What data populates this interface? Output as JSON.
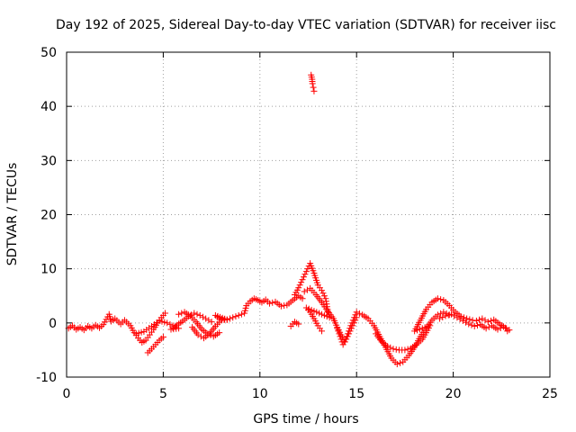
{
  "chart_data": {
    "type": "scatter",
    "title": "Day 192 of 2025, Sidereal Day-to-day VTEC variation (SDTVAR) for receiver iisc",
    "xlabel": "GPS time / hours",
    "ylabel": "SDTVAR / TECUs",
    "xlim": [
      0,
      25
    ],
    "ylim": [
      -10,
      50
    ],
    "xticks": [
      "0",
      "5",
      "10",
      "15",
      "20",
      "25"
    ],
    "yticks": [
      "-10",
      "0",
      "10",
      "20",
      "30",
      "40",
      "50"
    ],
    "grid": true,
    "marker": "+",
    "series": [
      {
        "name": "SDTVAR",
        "color": "#ff0000",
        "points": [
          [
            0.1,
            -1.0
          ],
          [
            0.3,
            -0.5
          ],
          [
            0.5,
            -1.2
          ],
          [
            0.7,
            -0.8
          ],
          [
            0.9,
            -1.3
          ],
          [
            1.1,
            -0.6
          ],
          [
            1.3,
            -1.0
          ],
          [
            1.5,
            -0.4
          ],
          [
            1.7,
            -0.9
          ],
          [
            1.9,
            -0.3
          ],
          [
            2.2,
            1.6
          ],
          [
            2.3,
            0.3
          ],
          [
            2.5,
            0.8
          ],
          [
            2.8,
            -0.2
          ],
          [
            3.0,
            0.5
          ],
          [
            3.3,
            -0.5
          ],
          [
            3.5,
            -1.8
          ],
          [
            3.7,
            -2.8
          ],
          [
            3.9,
            -3.6
          ],
          [
            4.1,
            -3.2
          ],
          [
            4.3,
            -2.2
          ],
          [
            4.5,
            -1.2
          ],
          [
            4.7,
            0.0
          ],
          [
            4.9,
            1.0
          ],
          [
            5.1,
            1.8
          ],
          [
            4.2,
            -5.5
          ],
          [
            4.4,
            -4.8
          ],
          [
            4.6,
            -4.0
          ],
          [
            4.8,
            -3.2
          ],
          [
            5.0,
            -2.6
          ],
          [
            3.6,
            -2.0
          ],
          [
            4.0,
            -1.6
          ],
          [
            4.4,
            -0.6
          ],
          [
            4.8,
            0.4
          ],
          [
            5.2,
            0.0
          ],
          [
            5.5,
            -0.5
          ],
          [
            5.8,
            -1.0
          ],
          [
            5.4,
            -1.2
          ],
          [
            5.7,
            -0.4
          ],
          [
            6.0,
            0.3
          ],
          [
            6.3,
            1.2
          ],
          [
            6.6,
            1.8
          ],
          [
            6.9,
            1.4
          ],
          [
            7.2,
            0.8
          ],
          [
            7.5,
            0.2
          ],
          [
            5.8,
            1.6
          ],
          [
            6.1,
            2.0
          ],
          [
            6.4,
            1.3
          ],
          [
            6.7,
            0.2
          ],
          [
            7.0,
            -1.2
          ],
          [
            7.3,
            -2.0
          ],
          [
            7.6,
            -2.5
          ],
          [
            7.9,
            -1.8
          ],
          [
            6.5,
            -0.8
          ],
          [
            6.8,
            -2.2
          ],
          [
            7.1,
            -2.8
          ],
          [
            7.4,
            -2.0
          ],
          [
            7.7,
            -0.6
          ],
          [
            8.0,
            0.5
          ],
          [
            8.3,
            0.6
          ],
          [
            7.7,
            1.4
          ],
          [
            7.9,
            0.8
          ],
          [
            8.3,
            0.6
          ],
          [
            8.6,
            1.0
          ],
          [
            8.9,
            1.4
          ],
          [
            9.2,
            1.8
          ],
          [
            9.3,
            3.2
          ],
          [
            9.5,
            4.0
          ],
          [
            9.7,
            4.5
          ],
          [
            9.9,
            4.2
          ],
          [
            10.1,
            3.8
          ],
          [
            10.3,
            4.3
          ],
          [
            10.5,
            3.6
          ],
          [
            10.8,
            3.9
          ],
          [
            11.1,
            3.1
          ],
          [
            11.4,
            3.3
          ],
          [
            11.7,
            4.2
          ],
          [
            12.0,
            5.0
          ],
          [
            12.2,
            4.5
          ],
          [
            11.6,
            -0.6
          ],
          [
            11.8,
            0.2
          ],
          [
            12.0,
            -0.2
          ],
          [
            11.8,
            5.2
          ],
          [
            12.0,
            6.5
          ],
          [
            12.2,
            8.0
          ],
          [
            12.4,
            9.5
          ],
          [
            12.6,
            11.0
          ],
          [
            12.8,
            9.2
          ],
          [
            13.0,
            7.0
          ],
          [
            13.2,
            6.0
          ],
          [
            13.4,
            4.5
          ],
          [
            13.5,
            2.5
          ],
          [
            13.6,
            1.0
          ],
          [
            12.4,
            2.8
          ],
          [
            12.6,
            2.0
          ],
          [
            12.8,
            0.8
          ],
          [
            13.0,
            -0.5
          ],
          [
            13.2,
            -1.5
          ],
          [
            12.3,
            5.8
          ],
          [
            12.6,
            6.4
          ],
          [
            12.9,
            5.2
          ],
          [
            13.2,
            3.8
          ],
          [
            13.5,
            2.2
          ],
          [
            13.8,
            0.8
          ],
          [
            14.0,
            -0.8
          ],
          [
            14.2,
            -2.2
          ],
          [
            14.4,
            -3.5
          ],
          [
            14.6,
            -2.0
          ],
          [
            14.8,
            -0.5
          ],
          [
            15.0,
            1.0
          ],
          [
            12.65,
            45.8
          ],
          [
            12.7,
            45.0
          ],
          [
            12.72,
            44.2
          ],
          [
            12.76,
            43.5
          ],
          [
            12.8,
            42.8
          ],
          [
            14.0,
            -1.0
          ],
          [
            14.2,
            -3.0
          ],
          [
            14.3,
            -4.0
          ],
          [
            14.5,
            -2.5
          ],
          [
            14.7,
            -0.5
          ],
          [
            15.0,
            2.0
          ],
          [
            15.3,
            1.5
          ],
          [
            15.6,
            0.8
          ],
          [
            15.9,
            -0.5
          ],
          [
            16.2,
            -2.5
          ],
          [
            16.5,
            -4.5
          ],
          [
            16.8,
            -6.5
          ],
          [
            17.1,
            -7.6
          ],
          [
            17.4,
            -7.2
          ],
          [
            17.7,
            -6.0
          ],
          [
            18.0,
            -4.5
          ],
          [
            18.3,
            -2.5
          ],
          [
            18.6,
            -1.0
          ],
          [
            18.9,
            0.5
          ],
          [
            19.2,
            1.5
          ],
          [
            19.5,
            2.0
          ],
          [
            19.8,
            1.5
          ],
          [
            16.0,
            -2.0
          ],
          [
            16.3,
            -3.5
          ],
          [
            16.6,
            -4.3
          ],
          [
            16.9,
            -4.8
          ],
          [
            17.2,
            -5.0
          ],
          [
            17.5,
            -5.0
          ],
          [
            17.8,
            -4.7
          ],
          [
            18.1,
            -4.0
          ],
          [
            18.4,
            -3.0
          ],
          [
            18.6,
            -1.8
          ],
          [
            18.8,
            -0.5
          ],
          [
            18.0,
            -1.5
          ],
          [
            18.3,
            0.5
          ],
          [
            18.6,
            2.5
          ],
          [
            18.9,
            3.8
          ],
          [
            19.2,
            4.5
          ],
          [
            19.5,
            4.2
          ],
          [
            19.8,
            3.2
          ],
          [
            20.1,
            2.0
          ],
          [
            20.4,
            1.2
          ],
          [
            20.7,
            0.8
          ],
          [
            21.0,
            0.5
          ],
          [
            19.3,
            0.8
          ],
          [
            19.6,
            1.3
          ],
          [
            19.9,
            1.6
          ],
          [
            20.2,
            1.0
          ],
          [
            20.5,
            0.4
          ],
          [
            20.8,
            -0.2
          ],
          [
            21.1,
            -0.6
          ],
          [
            21.4,
            -0.3
          ],
          [
            21.7,
            -1.0
          ],
          [
            22.0,
            -0.5
          ],
          [
            22.3,
            -1.2
          ],
          [
            22.6,
            -0.7
          ],
          [
            22.9,
            -1.3
          ],
          [
            21.2,
            0.4
          ],
          [
            21.5,
            0.8
          ],
          [
            21.8,
            0.2
          ],
          [
            22.1,
            0.6
          ],
          [
            22.4,
            -0.2
          ],
          [
            22.7,
            -0.9
          ],
          [
            22.8,
            -1.5
          ]
        ]
      }
    ]
  }
}
